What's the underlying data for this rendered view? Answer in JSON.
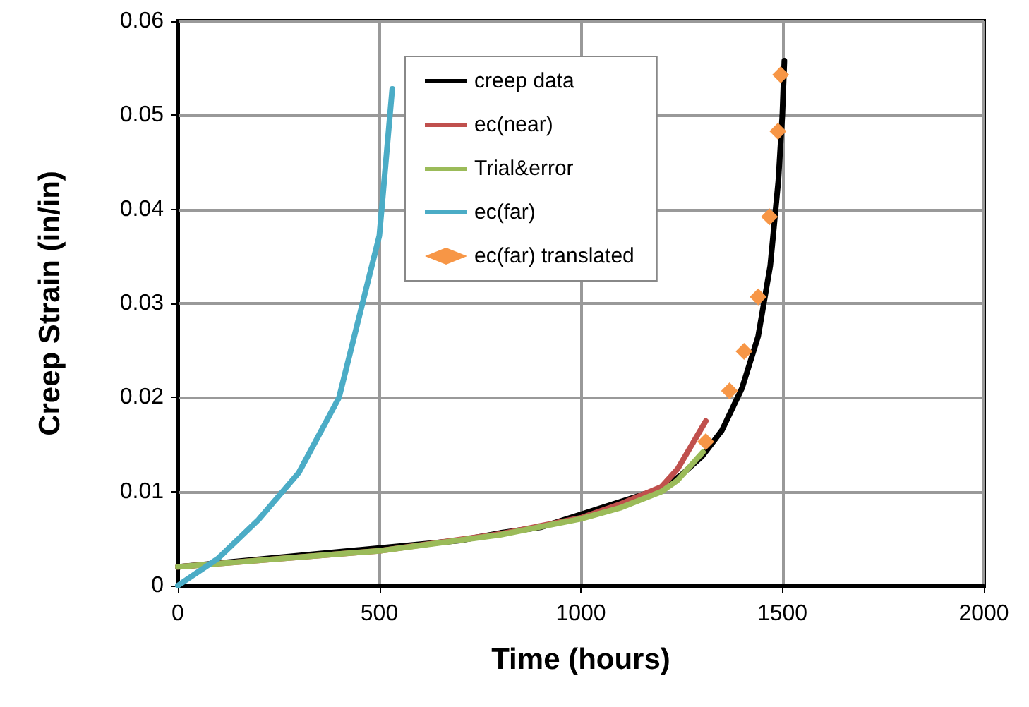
{
  "chart_data": {
    "type": "line",
    "xlabel": "Time (hours)",
    "ylabel": "Creep Strain (in/in)",
    "xlim": [
      0,
      2000
    ],
    "xticks": [
      0,
      500,
      1000,
      1500,
      2000
    ],
    "ylim": [
      0,
      0.06
    ],
    "yticks": [
      0,
      0.01,
      0.02,
      0.03,
      0.04,
      0.05,
      0.06
    ],
    "grid": true,
    "legend": "top",
    "marker": "none",
    "line_style": "solid",
    "series": [
      {
        "name": "creep data",
        "color": "#000000",
        "x": [
          0,
          700,
          800,
          900,
          1200,
          1250,
          1300,
          1350,
          1400,
          1440,
          1470,
          1490,
          1500,
          1505
        ],
        "values": [
          0.002,
          0.0048,
          0.0056,
          0.0062,
          0.0103,
          0.0118,
          0.0137,
          0.0165,
          0.021,
          0.0265,
          0.034,
          0.043,
          0.05,
          0.0558
        ]
      },
      {
        "name": "ec(near)",
        "color": "#c0504d",
        "x": [
          0,
          500,
          800,
          1000,
          1100,
          1200,
          1240,
          1310
        ],
        "values": [
          0.002,
          0.0037,
          0.0055,
          0.0072,
          0.0087,
          0.0105,
          0.0124,
          0.0175
        ]
      },
      {
        "name": "Trial&error",
        "color": "#9bbb59",
        "x": [
          0,
          500,
          800,
          1000,
          1100,
          1200,
          1240,
          1303
        ],
        "values": [
          0.002,
          0.0037,
          0.0054,
          0.0071,
          0.0083,
          0.01,
          0.0112,
          0.0142
        ]
      },
      {
        "name": "ec(far)",
        "color": "#4bacc6",
        "x": [
          0,
          100,
          200,
          300,
          400,
          500,
          532
        ],
        "values": [
          0,
          0.0029,
          0.007,
          0.012,
          0.02,
          0.0372,
          0.0528
        ]
      },
      {
        "name": "ec(far) translated",
        "type": "scatter",
        "marker": "diamond",
        "color": "#f79646",
        "x": [
          1310,
          1369,
          1405,
          1440,
          1468,
          1489,
          1496
        ],
        "values": [
          0.0153,
          0.0207,
          0.0249,
          0.0307,
          0.0392,
          0.0483,
          0.0543
        ]
      }
    ]
  }
}
